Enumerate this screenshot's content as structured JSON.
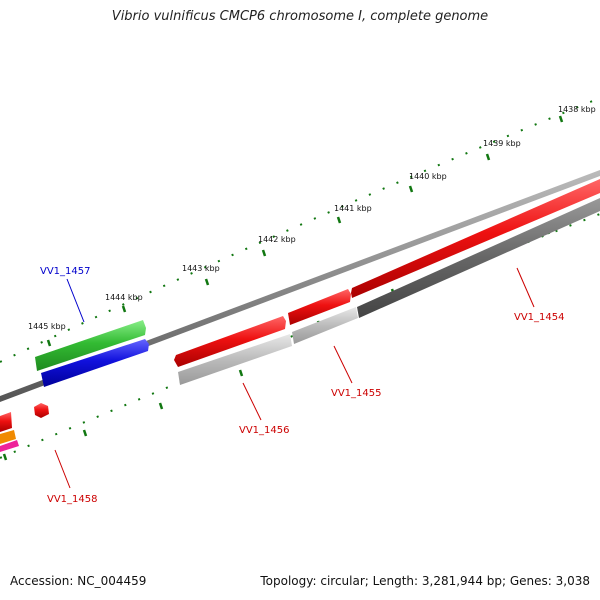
{
  "title": "Vibrio vulnificus CMCP6 chromosome I, complete genome",
  "footer": {
    "accession": "Accession: NC_004459",
    "summary": "Topology: circular; Length: 3,281,944 bp; Genes: 3,038"
  },
  "ticks": [
    "1438 kbp",
    "1439 kbp",
    "1440 kbp",
    "1441 kbp",
    "1442 kbp",
    "1443 kbp",
    "1444 kbp",
    "1445 kbp"
  ],
  "genes": [
    {
      "label": "VV1_1454",
      "color": "#cc0000"
    },
    {
      "label": "VV1_1455",
      "color": "#cc0000"
    },
    {
      "label": "VV1_1456",
      "color": "#cc0000"
    },
    {
      "label": "VV1_1457",
      "color": "#0000cc"
    },
    {
      "label": "VV1_1458",
      "color": "#cc0000"
    }
  ],
  "colors": {
    "tick": "#117711",
    "backbone": "#888888",
    "cds_red": "#ee1111",
    "cds_green": "#33bb33",
    "cds_blue": "#1111dd",
    "gray_light": "#bbbbbb",
    "gray_dark": "#666666"
  }
}
